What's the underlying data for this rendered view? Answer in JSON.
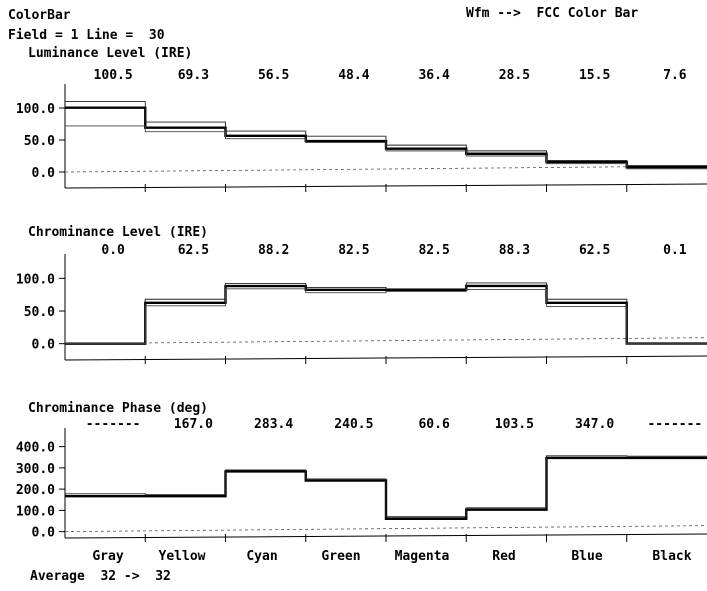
{
  "header": {
    "title": "ColorBar",
    "field_line": "Field = 1 Line =  30",
    "waveform_mode": "Wfm -->  FCC Color Bar"
  },
  "footer": {
    "average": "Average  32 ->  32"
  },
  "chart_data": [
    {
      "type": "line",
      "title": "Luminance Level (IRE)",
      "value_labels": [
        "100.5",
        "69.3",
        "56.5",
        "48.4",
        "36.4",
        "28.5",
        "15.5",
        "7.6"
      ],
      "categories": [
        "Gray",
        "Yellow",
        "Cyan",
        "Green",
        "Magenta",
        "Red",
        "Blue",
        "Black"
      ],
      "yticks": [
        "100.0",
        "50.0",
        "0.0"
      ],
      "ylim": [
        -25,
        125
      ],
      "series": [
        {
          "values": [
            100.5,
            69.3,
            56.5,
            48.4,
            36.4,
            28.5,
            15.5,
            7.6
          ]
        },
        {
          "values": [
            110,
            78,
            64,
            56,
            42,
            33,
            18,
            10
          ]
        },
        {
          "values": [
            72,
            63,
            52,
            46,
            33,
            25,
            13,
            5
          ]
        }
      ],
      "reference_line": 0,
      "grid": false
    },
    {
      "type": "line",
      "title": "Chrominance Level (IRE)",
      "value_labels": [
        "0.0",
        "62.5",
        "88.2",
        "82.5",
        "82.5",
        "88.3",
        "62.5",
        "0.1"
      ],
      "categories": [
        "Gray",
        "Yellow",
        "Cyan",
        "Green",
        "Magenta",
        "Red",
        "Blue",
        "Black"
      ],
      "yticks": [
        "100.0",
        "50.0",
        "0.0"
      ],
      "ylim": [
        -25,
        125
      ],
      "series": [
        {
          "values": [
            0.0,
            62.5,
            88.2,
            82.5,
            82.5,
            88.3,
            62.5,
            0.1
          ]
        },
        {
          "values": [
            0,
            68,
            92,
            86,
            84,
            93,
            68,
            0
          ]
        },
        {
          "values": [
            0,
            58,
            84,
            78,
            80,
            83,
            57,
            0
          ]
        }
      ],
      "reference_line": 0,
      "grid": false
    },
    {
      "type": "line",
      "title": "Chrominance Phase (deg)",
      "value_labels": [
        "-------",
        "167.0",
        "283.4",
        "240.5",
        "60.6",
        "103.5",
        "347.0",
        "-------"
      ],
      "categories": [
        "Gray",
        "Yellow",
        "Cyan",
        "Green",
        "Magenta",
        "Red",
        "Blue",
        "Black"
      ],
      "yticks": [
        "400.0",
        "300.0",
        "200.0",
        "100.0",
        "0.0"
      ],
      "ylim": [
        -30,
        450
      ],
      "series": [
        {
          "values": [
            167,
            167.0,
            283.4,
            240.5,
            60.6,
            103.5,
            347.0,
            347
          ]
        },
        {
          "values": [
            178,
            174,
            290,
            248,
            70,
            112,
            357,
            355
          ]
        }
      ],
      "reference_line": 0,
      "grid": false
    }
  ]
}
